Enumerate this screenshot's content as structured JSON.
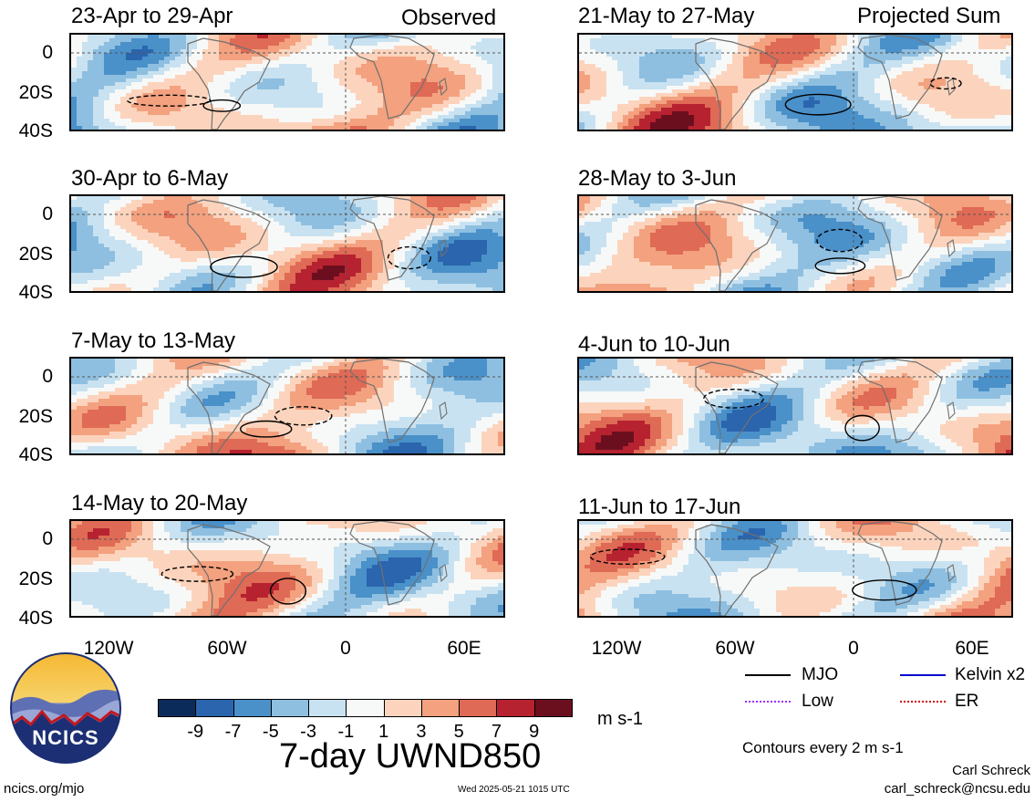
{
  "left_tag": "Observed",
  "right_tag": "Projected Sum",
  "panels": [
    {
      "title": "23-Apr to 29-Apr"
    },
    {
      "title": "30-Apr to 6-May"
    },
    {
      "title": "7-May to 13-May"
    },
    {
      "title": "14-May to 20-May"
    },
    {
      "title": "21-May to 27-May"
    },
    {
      "title": "28-May to 3-Jun"
    },
    {
      "title": "4-Jun to 10-Jun"
    },
    {
      "title": "11-Jun to 17-Jun"
    }
  ],
  "y_ticks": [
    "0",
    "20S",
    "40S"
  ],
  "x_ticks": [
    "120W",
    "60W",
    "0",
    "60E"
  ],
  "colorbar": {
    "labels": [
      "-9",
      "-7",
      "-5",
      "-3",
      "-1",
      "1",
      "3",
      "5",
      "7",
      "9"
    ],
    "colors": [
      "#0b2c5a",
      "#2a65ad",
      "#4a90c9",
      "#8ebfe0",
      "#c9e2f1",
      "#f7f9f8",
      "#fcd4bd",
      "#f3a17f",
      "#df6a55",
      "#b72230",
      "#6b0f1f"
    ],
    "units": "m s-1"
  },
  "main_title": "7-day UWND850",
  "legend": {
    "items": [
      {
        "label": "MJO",
        "color": "#000000"
      },
      {
        "label": "Kelvin x2",
        "color": "#0000cc"
      },
      {
        "label": "Low",
        "color": "#9b30ff"
      },
      {
        "label": "ER",
        "color": "#cc0000"
      }
    ],
    "contours_note": "Contours every 2 m s-1"
  },
  "logo_text": "NCICS",
  "footer": {
    "url": "ncics.org/mjo",
    "timestamp": "Wed 2025-05-21 1015 UTC",
    "author": "Carl Schreck",
    "email": "carl_schreck@ncsu.edu"
  }
}
